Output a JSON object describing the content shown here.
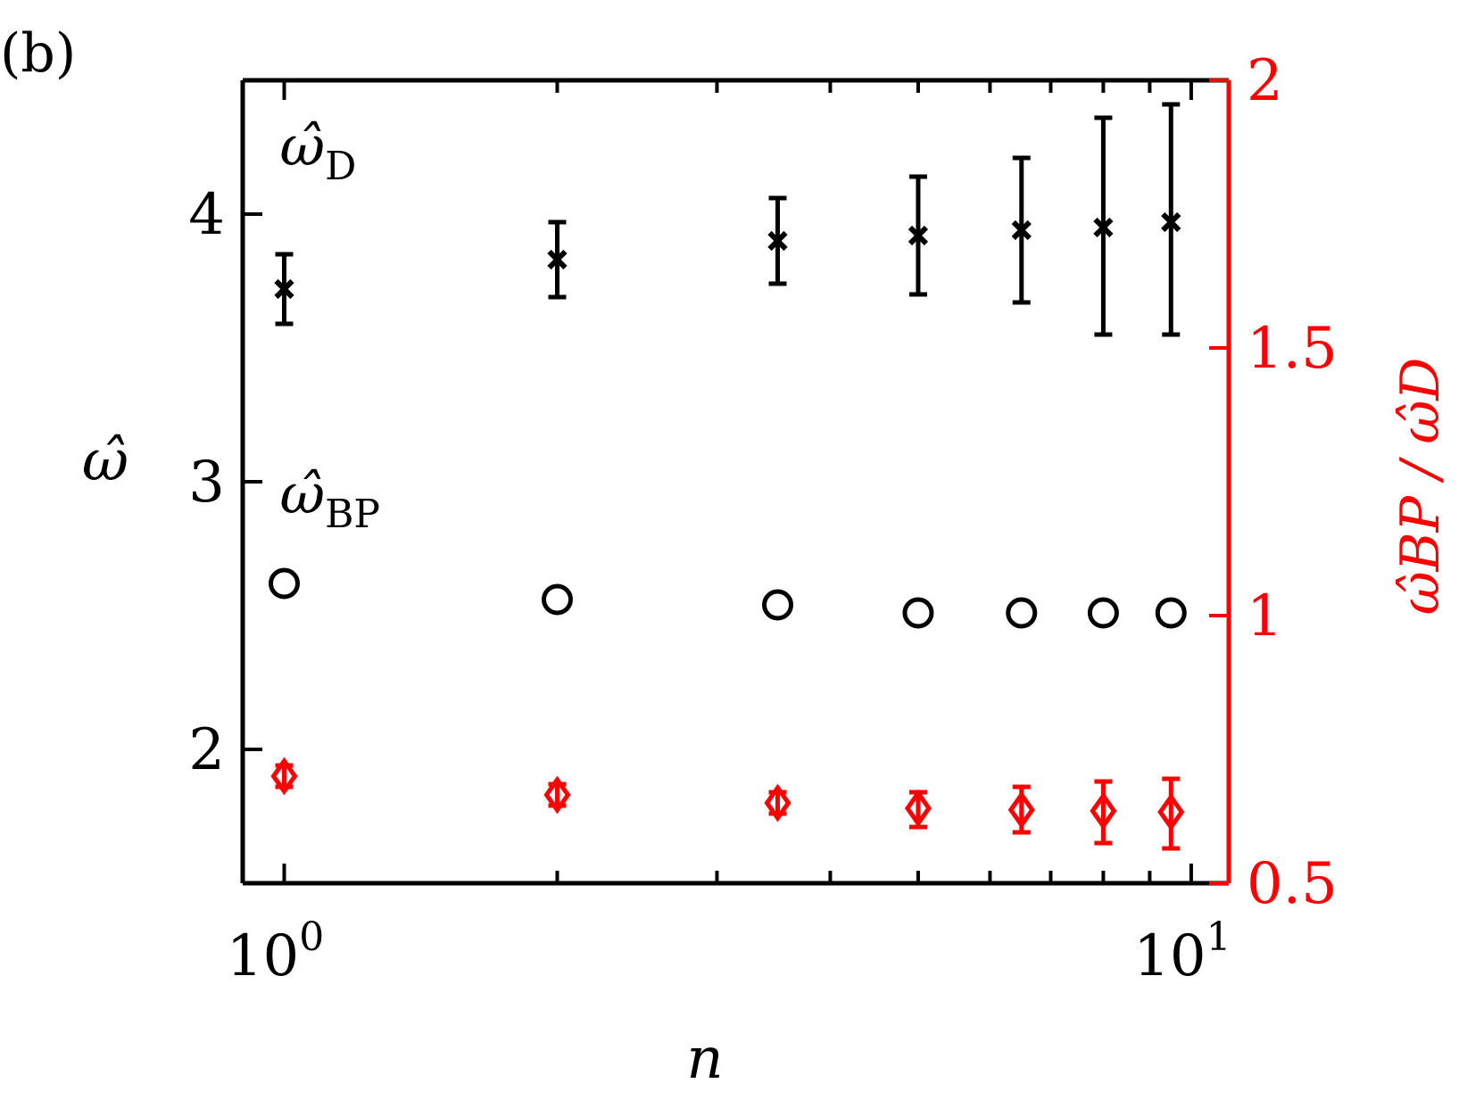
{
  "panel_label": "(b)",
  "chart_data": {
    "type": "scatter",
    "xlabel": "n",
    "x_scale": "log",
    "xlim": [
      0.9,
      11
    ],
    "x_ticks": [
      1,
      10
    ],
    "x_tick_labels": [
      {
        "base": "10",
        "exp": "0"
      },
      {
        "base": "10",
        "exp": "1"
      }
    ],
    "left_axis": {
      "label": "ω̂",
      "ylim": [
        1.5,
        4.5
      ],
      "ticks": [
        2,
        3,
        4
      ],
      "tick_labels": [
        "2",
        "3",
        "4"
      ],
      "color": "#000000"
    },
    "right_axis": {
      "label": "ω̂BP / ω̂D",
      "ylim": [
        0.5,
        2
      ],
      "ticks": [
        0.5,
        1,
        1.5,
        2
      ],
      "tick_labels": [
        "0.5",
        "1",
        "1.5",
        "2"
      ],
      "color": "#ff0000"
    },
    "x": [
      1,
      2,
      3.5,
      5,
      6.5,
      8,
      9.5
    ],
    "series": [
      {
        "name": "ω̂D",
        "axis": "left",
        "marker": "x",
        "color": "#000000",
        "values": [
          3.72,
          3.83,
          3.9,
          3.92,
          3.94,
          3.95,
          3.97
        ],
        "err_low": [
          3.59,
          3.69,
          3.74,
          3.7,
          3.67,
          3.55,
          3.55
        ],
        "err_high": [
          3.85,
          3.97,
          4.06,
          4.14,
          4.21,
          4.36,
          4.41
        ]
      },
      {
        "name": "ω̂BP",
        "axis": "left",
        "marker": "circle",
        "color": "#000000",
        "values": [
          2.62,
          2.56,
          2.54,
          2.51,
          2.51,
          2.51,
          2.51
        ]
      },
      {
        "name": "ω̂BP/ω̂D",
        "axis": "right",
        "marker": "diamond",
        "color": "#ff0000",
        "values": [
          0.7,
          0.665,
          0.65,
          0.64,
          0.637,
          0.635,
          0.633
        ],
        "err_low": [
          0.68,
          0.645,
          0.63,
          0.605,
          0.595,
          0.575,
          0.565
        ],
        "err_high": [
          0.72,
          0.685,
          0.67,
          0.67,
          0.68,
          0.69,
          0.695
        ]
      }
    ],
    "annotations": [
      {
        "base": "ω̂",
        "sub": "D",
        "x": 1.0,
        "y": 4.25,
        "axis": "left"
      },
      {
        "base": "ω̂",
        "sub": "BP",
        "x": 1.0,
        "y": 2.95,
        "axis": "left"
      }
    ]
  }
}
